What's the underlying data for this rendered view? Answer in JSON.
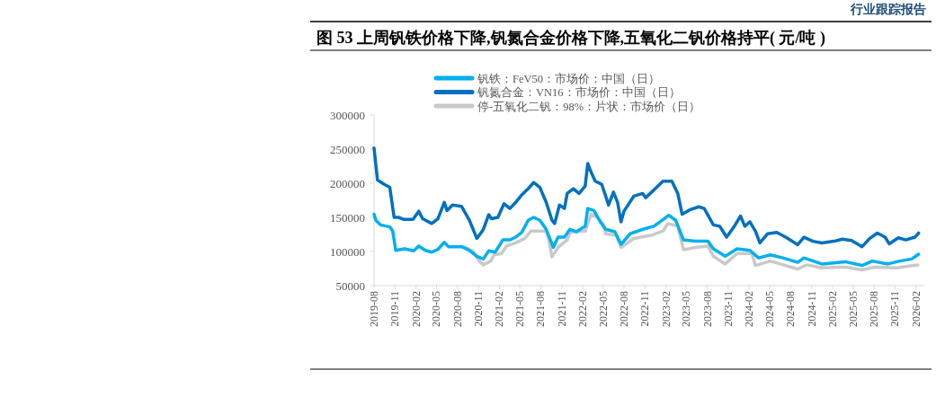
{
  "chart_data": {
    "type": "line",
    "title": "图 53 上周钒铁价格下降,钒氮合金价格下降,五氧化二钒价格持平( 元/吨 )",
    "annotations": [
      "行业跟踪报告"
    ],
    "legend": "top",
    "xlim": [
      "2019-08-01",
      "2026-03-10"
    ],
    "xticks": [
      "2019-08",
      "2019-11",
      "2020-02",
      "2020-05",
      "2020-08",
      "2020-11",
      "2021-02",
      "2021-05",
      "2021-08",
      "2021-11",
      "2022-02",
      "2022-05",
      "2022-08",
      "2022-11",
      "2023-02",
      "2023-05",
      "2023-08",
      "2023-11",
      "2024-02",
      "2024-05",
      "2024-08",
      "2024-11",
      "2025-02",
      "2025-05",
      "2025-08",
      "2025-11",
      "2026-02"
    ],
    "ylim": [
      50000,
      300000
    ],
    "yticks": [
      50000,
      100000,
      150000,
      200000,
      250000,
      300000
    ],
    "series": [
      {
        "name": "钒铁：FeV50：市场价：中国（日）",
        "color": "#00b0f0",
        "x": [
          "2019-08-01",
          "2019-08-09",
          "2019-08-29",
          "2019-10-09",
          "2019-10-22",
          "2019-11-04",
          "2019-12-13",
          "2020-01-22",
          "2020-02-13",
          "2020-03-13",
          "2020-04-10",
          "2020-05-07",
          "2020-06-04",
          "2020-06-22",
          "2020-08-19",
          "2020-09-22",
          "2020-10-25",
          "2020-11-22",
          "2020-12-16",
          "2021-01-13",
          "2021-02-16",
          "2021-03-19",
          "2021-04-13",
          "2021-05-10",
          "2021-06-07",
          "2021-07-01",
          "2021-07-28",
          "2021-08-25",
          "2021-09-25",
          "2021-10-16",
          "2021-11-13",
          "2021-12-07",
          "2022-01-04",
          "2022-02-12",
          "2022-02-23",
          "2022-03-22",
          "2022-04-19",
          "2022-05-13",
          "2022-06-22",
          "2022-07-19",
          "2022-08-28",
          "2022-10-22",
          "2022-12-10",
          "2023-01-19",
          "2023-02-13",
          "2023-03-16",
          "2023-04-19",
          "2023-06-10",
          "2023-08-04",
          "2023-08-28",
          "2023-10-19",
          "2023-12-10",
          "2024-02-04",
          "2024-03-13",
          "2024-05-04",
          "2024-06-28",
          "2024-09-01",
          "2024-09-28",
          "2024-12-16",
          "2025-03-28",
          "2025-06-10",
          "2025-07-25",
          "2025-10-01",
          "2025-11-22",
          "2026-01-13",
          "2026-02-13"
        ],
        "values": [
          154500,
          145700,
          139000,
          136000,
          130000,
          101600,
          104000,
          101000,
          108000,
          101600,
          99000,
          103000,
          113500,
          107000,
          107000,
          101600,
          93000,
          89000,
          101000,
          99000,
          117000,
          117000,
          121000,
          128000,
          145700,
          150000,
          145700,
          132500,
          106000,
          121000,
          121000,
          132500,
          129000,
          137000,
          163000,
          160000,
          143500,
          132500,
          129000,
          110500,
          126000,
          132500,
          137000,
          146600,
          153000,
          145700,
          117000,
          115000,
          115000,
          104000,
          93000,
          104000,
          101600,
          90600,
          95000,
          90600,
          84000,
          90600,
          81700,
          85000,
          79500,
          86000,
          81700,
          86000,
          89000,
          96000
        ]
      },
      {
        "name": "钒氮合金：VN16：市场价：中国（日）",
        "color": "#0070c0",
        "x": [
          "2019-08-01",
          "2019-08-16",
          "2019-09-13",
          "2019-10-09",
          "2019-10-28",
          "2019-11-16",
          "2019-12-10",
          "2020-01-19",
          "2020-02-13",
          "2020-03-01",
          "2020-04-10",
          "2020-05-07",
          "2020-06-04",
          "2020-06-16",
          "2020-07-10",
          "2020-08-19",
          "2020-09-22",
          "2020-10-25",
          "2020-11-22",
          "2020-12-16",
          "2020-12-28",
          "2021-01-25",
          "2021-02-21",
          "2021-03-19",
          "2021-04-13",
          "2021-05-10",
          "2021-06-07",
          "2021-07-01",
          "2021-07-28",
          "2021-08-25",
          "2021-09-19",
          "2021-10-01",
          "2021-10-22",
          "2021-11-13",
          "2021-11-25",
          "2021-12-22",
          "2022-01-16",
          "2022-02-12",
          "2022-02-23",
          "2022-03-10",
          "2022-03-28",
          "2022-04-25",
          "2022-05-13",
          "2022-05-25",
          "2022-06-16",
          "2022-07-04",
          "2022-07-19",
          "2022-08-01",
          "2022-09-13",
          "2022-10-22",
          "2022-11-04",
          "2022-12-10",
          "2023-01-19",
          "2023-02-27",
          "2023-03-25",
          "2023-04-13",
          "2023-05-16",
          "2023-06-25",
          "2023-07-19",
          "2023-08-28",
          "2023-09-25",
          "2023-10-25",
          "2023-11-28",
          "2023-12-25",
          "2024-01-13",
          "2024-02-04",
          "2024-02-28",
          "2024-03-19",
          "2024-04-22",
          "2024-06-01",
          "2024-07-10",
          "2024-09-01",
          "2024-09-28",
          "2024-11-07",
          "2024-12-16",
          "2025-02-07",
          "2025-03-16",
          "2025-04-25",
          "2025-06-10",
          "2025-07-13",
          "2025-08-16",
          "2025-09-19",
          "2025-10-07",
          "2025-11-16",
          "2025-12-19",
          "2026-01-28",
          "2026-02-13"
        ],
        "values": [
          251500,
          205000,
          198600,
          194000,
          150000,
          150000,
          147000,
          147000,
          159000,
          148000,
          141000,
          148000,
          172000,
          160000,
          168000,
          166000,
          146000,
          119000,
          132000,
          154000,
          148000,
          150000,
          170000,
          163000,
          172000,
          183000,
          192000,
          201000,
          194000,
          172000,
          146000,
          141000,
          168000,
          163000,
          185000,
          192000,
          185000,
          196000,
          229000,
          216000,
          203000,
          198600,
          181000,
          168000,
          187000,
          172000,
          143500,
          159000,
          181000,
          185000,
          178800,
          190000,
          203000,
          203000,
          185000,
          154500,
          161000,
          165500,
          163000,
          139000,
          137000,
          121000,
          137000,
          152000,
          137000,
          143500,
          130000,
          112600,
          126000,
          128000,
          121000,
          110000,
          121000,
          115000,
          112600,
          115000,
          118000,
          116000,
          107000,
          119000,
          127000,
          121000,
          111300,
          120000,
          117000,
          121000,
          127000
        ]
      },
      {
        "name": "停-五氧化二钒：98%：片状：市场价（日）",
        "color": "#c9c9c9",
        "x": [
          "2020-08-19",
          "2020-09-04",
          "2020-10-07",
          "2020-11-04",
          "2020-11-22",
          "2020-12-25",
          "2021-01-07",
          "2021-02-10",
          "2021-03-04",
          "2021-04-13",
          "2021-05-22",
          "2021-06-19",
          "2021-08-25",
          "2021-09-07",
          "2021-09-19",
          "2021-10-16",
          "2021-11-25",
          "2021-12-07",
          "2022-02-12",
          "2022-03-10",
          "2022-04-07",
          "2022-05-04",
          "2022-05-13",
          "2022-06-28",
          "2022-07-19",
          "2022-09-13",
          "2022-11-28",
          "2023-01-19",
          "2023-02-10",
          "2023-03-25",
          "2023-04-19",
          "2023-06-10",
          "2023-08-04",
          "2023-08-28",
          "2023-10-19",
          "2023-12-10",
          "2024-02-13",
          "2024-02-28",
          "2024-05-04",
          "2024-07-10",
          "2024-09-01",
          "2024-10-10",
          "2024-12-16",
          "2025-03-28",
          "2025-06-10",
          "2025-08-07",
          "2025-11-07",
          "2026-02-10"
        ],
        "values": [
          107000,
          106000,
          101000,
          86000,
          80400,
          86000,
          95000,
          97000,
          108000,
          112600,
          119000,
          130000,
          130000,
          115000,
          92000,
          106000,
          117000,
          128000,
          130000,
          154500,
          150000,
          139000,
          126000,
          123600,
          106000,
          119000,
          123600,
          130000,
          141000,
          137000,
          102500,
          106000,
          108000,
          93000,
          81700,
          97000,
          97000,
          79500,
          86000,
          79500,
          74300,
          80400,
          76000,
          77300,
          73000,
          77300,
          76000,
          80400
        ]
      }
    ]
  }
}
